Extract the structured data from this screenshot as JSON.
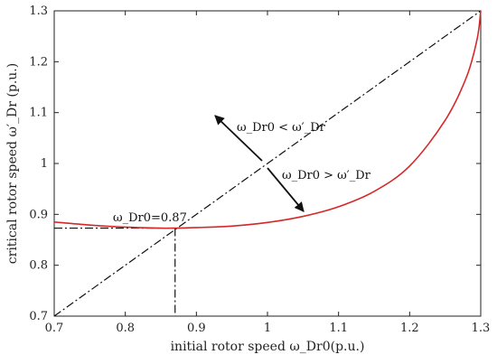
{
  "chart_data": {
    "type": "line",
    "xlabel": "initial rotor speed ω_Dr0(p.u.)",
    "ylabel": "critical rotor speed ω′_Dr (p.u.)",
    "xlim": [
      0.7,
      1.3
    ],
    "ylim": [
      0.7,
      1.3
    ],
    "xticks": [
      "0.7",
      "0.8",
      "0.9",
      "1",
      "1.1",
      "1.2",
      "1.3"
    ],
    "yticks": [
      "0.7",
      "0.8",
      "0.9",
      "1",
      "1.1",
      "1.2",
      "1.3"
    ],
    "grid": false,
    "series": [
      {
        "type": "curve",
        "color": "#d62728",
        "x": [
          0.7,
          0.75,
          0.8,
          0.85,
          0.87,
          0.9,
          0.95,
          1.0,
          1.05,
          1.1,
          1.15,
          1.2,
          1.25,
          1.28,
          1.295,
          1.3
        ],
        "y": [
          0.885,
          0.879,
          0.875,
          0.873,
          0.873,
          0.874,
          0.877,
          0.884,
          0.896,
          0.915,
          0.945,
          0.995,
          1.085,
          1.17,
          1.245,
          1.3
        ]
      },
      {
        "type": "diagonal",
        "x": [
          0.7,
          1.3
        ],
        "y": [
          0.7,
          1.3
        ]
      }
    ],
    "marker_point": {
      "x": 0.87,
      "y": 0.873
    },
    "annotations": {
      "point_label": "ω_Dr0=0.87",
      "upper_region": "ω_Dr0 < ω′_Dr",
      "lower_region": "ω_Dr0 > ω′_Dr"
    }
  }
}
